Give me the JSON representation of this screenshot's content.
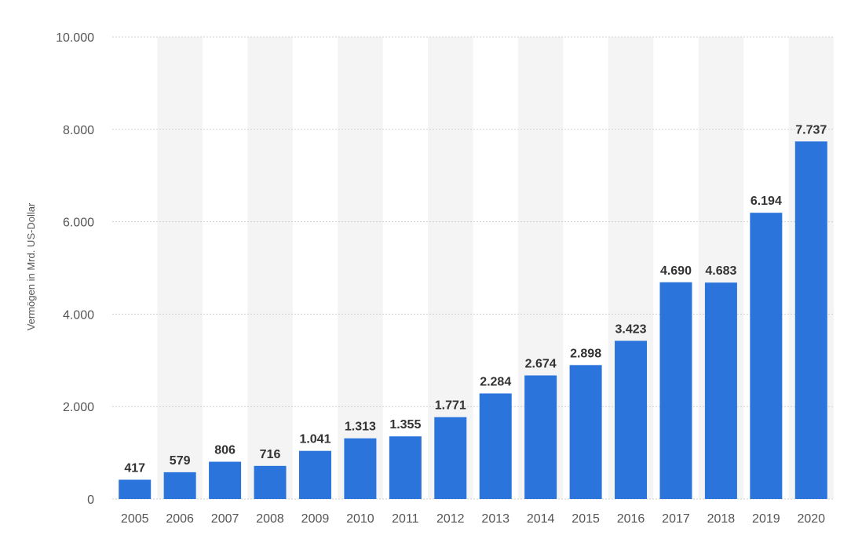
{
  "chart_data": {
    "type": "bar",
    "categories": [
      "2005",
      "2006",
      "2007",
      "2008",
      "2009",
      "2010",
      "2011",
      "2012",
      "2013",
      "2014",
      "2015",
      "2016",
      "2017",
      "2018",
      "2019",
      "2020"
    ],
    "values": [
      417,
      579,
      806,
      716,
      1041,
      1313,
      1355,
      1771,
      2284,
      2674,
      2898,
      3423,
      4690,
      4683,
      6194,
      7737
    ],
    "value_labels": [
      "417",
      "579",
      "806",
      "716",
      "1.041",
      "1.313",
      "1.355",
      "1.771",
      "2.284",
      "2.674",
      "2.898",
      "3.423",
      "4.690",
      "4.683",
      "6.194",
      "7.737"
    ],
    "ylabel": "Vermögen in Mrd. US-Dollar",
    "ylim": [
      0,
      10000
    ],
    "yticks": [
      0,
      2000,
      4000,
      6000,
      8000,
      10000
    ],
    "ytick_labels": [
      "0",
      "2.000",
      "4.000",
      "6.000",
      "8.000",
      "10.000"
    ],
    "grid": true,
    "bar_color": "#2b74dc"
  }
}
